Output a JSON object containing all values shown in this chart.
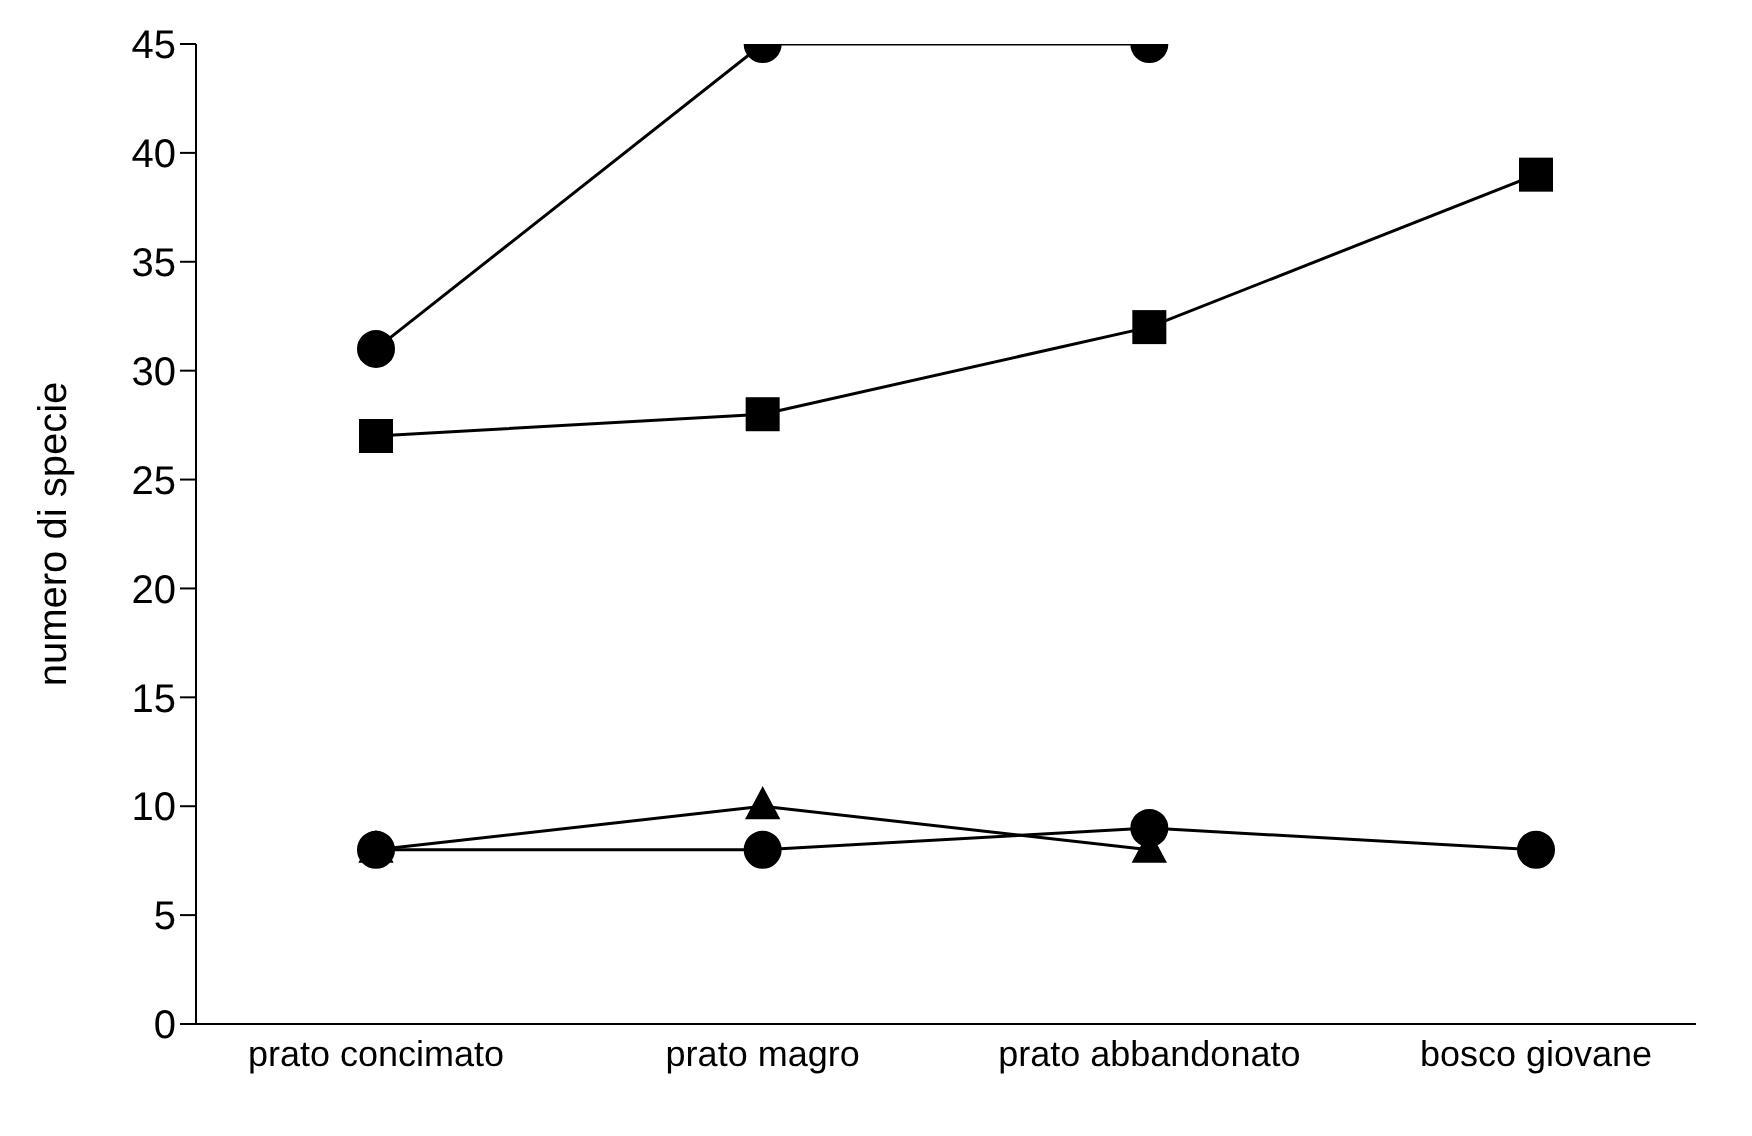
{
  "chart_data": {
    "type": "line",
    "ylabel": "numero di specie",
    "categories": [
      "prato concimato",
      "prato magro",
      "prato abbandonato",
      "bosco giovane"
    ],
    "series": [
      {
        "color": "#000000",
        "marker": "circle",
        "values": [
          31,
          45,
          45,
          null
        ]
      },
      {
        "color": "#000000",
        "marker": "square",
        "values": [
          27,
          28,
          32,
          39
        ]
      },
      {
        "color": "#000000",
        "marker": "circle",
        "values": [
          8,
          8,
          9,
          8
        ]
      },
      {
        "color": "#000000",
        "marker": "triangle",
        "values": [
          8,
          10,
          8,
          null
        ]
      }
    ],
    "ylim": [
      0,
      45
    ],
    "yticks": [
      0,
      5,
      10,
      15,
      20,
      25,
      30,
      35,
      40,
      45
    ]
  }
}
